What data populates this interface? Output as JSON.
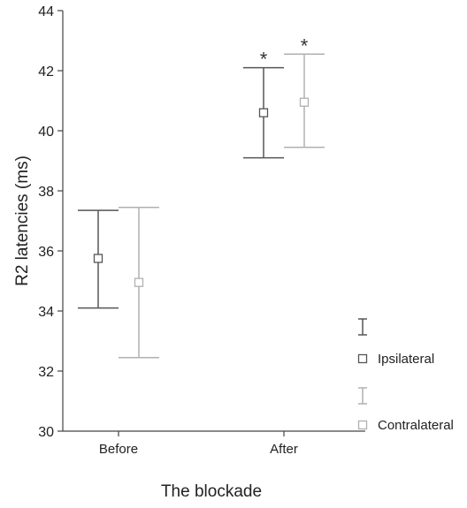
{
  "chart_data": {
    "type": "scatter",
    "xlabel": "The blockade",
    "ylabel": "R2 latencies (ms)",
    "categories": [
      "Before",
      "After"
    ],
    "ylim": [
      30,
      44
    ],
    "yticks": [
      30,
      32,
      34,
      36,
      38,
      40,
      42,
      44
    ],
    "grid": false,
    "legend_position": "right",
    "series": [
      {
        "name": "Ipsilateral",
        "color": "#555555",
        "marker": "open-square",
        "means": [
          35.75,
          40.6
        ],
        "lower": [
          34.1,
          39.1
        ],
        "upper": [
          37.35,
          42.1
        ]
      },
      {
        "name": "Contralateral",
        "color": "#b0b0b0",
        "marker": "open-square",
        "means": [
          34.95,
          40.95
        ],
        "lower": [
          32.45,
          39.45
        ],
        "upper": [
          37.45,
          42.55
        ]
      }
    ],
    "annotations": [
      {
        "text": "*",
        "category": "After",
        "series": "Ipsilateral"
      },
      {
        "text": "*",
        "category": "After",
        "series": "Contralateral"
      }
    ]
  }
}
